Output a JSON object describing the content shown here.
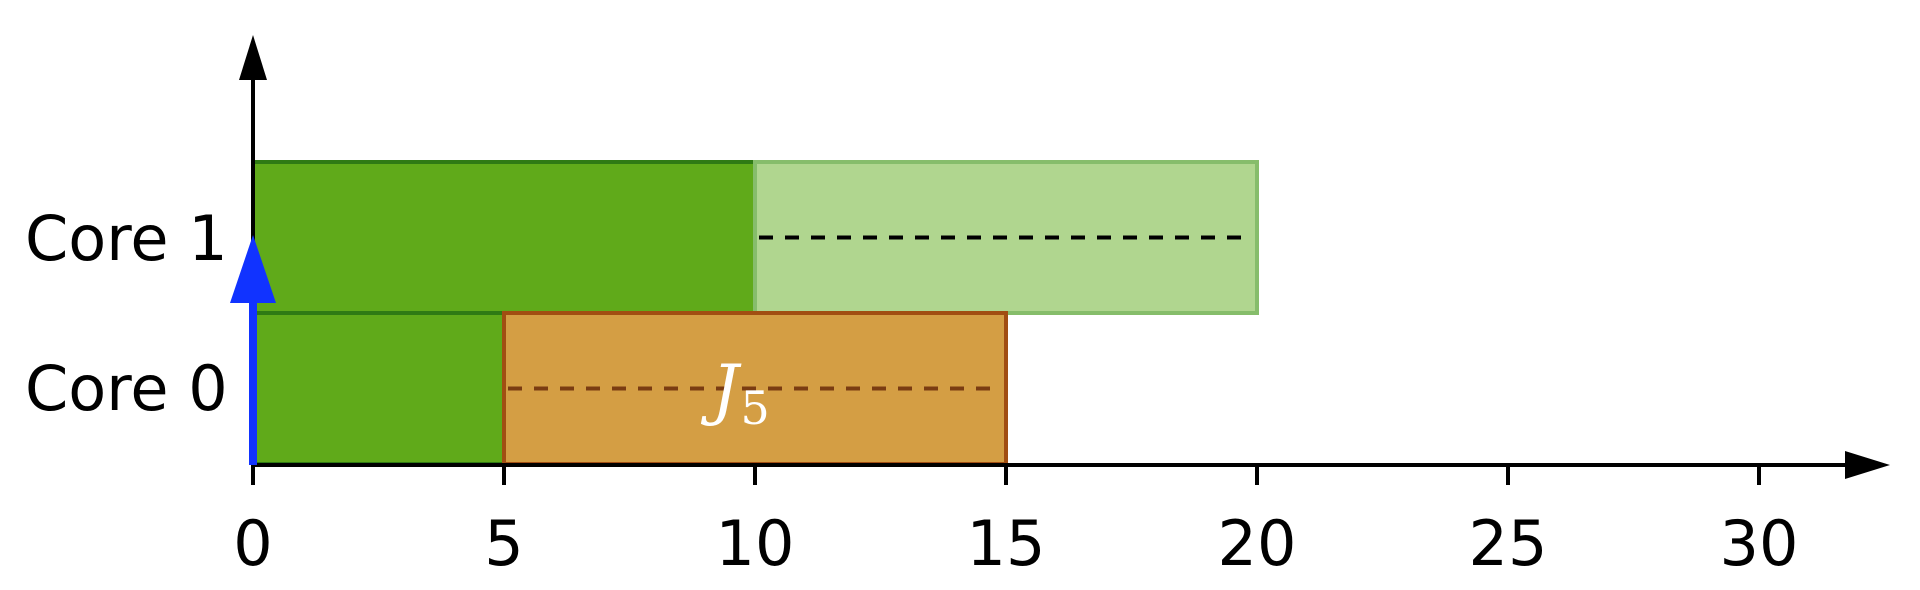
{
  "colors": {
    "axis": "#000000",
    "running_fill": "#60aa1a",
    "running_stroke": "#2f7a14",
    "pending_fill": "#b0d68f",
    "pending_stroke": "#86bd6b",
    "job_fill": "#d49e44",
    "job_stroke": "#a14e12",
    "job_dash": "#7a3c12",
    "pending_dash": "#000000",
    "release_arrow": "#1133ff"
  },
  "rows": [
    {
      "label": "Core 1"
    },
    {
      "label": "Core 0"
    }
  ],
  "x_ticks": [
    "0",
    "5",
    "10",
    "15",
    "20",
    "25",
    "30"
  ],
  "x_tick_values": [
    0,
    5,
    10,
    15,
    20,
    25,
    30
  ],
  "blocks": [
    {
      "row": 0,
      "start": 0,
      "end": 10,
      "kind": "running"
    },
    {
      "row": 0,
      "start": 10,
      "end": 20,
      "kind": "pending",
      "dashed": true
    },
    {
      "row": 1,
      "start": 0,
      "end": 5,
      "kind": "running"
    },
    {
      "row": 1,
      "start": 5,
      "end": 15,
      "kind": "job",
      "dashed": true
    }
  ],
  "job": {
    "symbol": "J",
    "subscript": "5"
  },
  "release_arrow": {
    "time": 0
  }
}
